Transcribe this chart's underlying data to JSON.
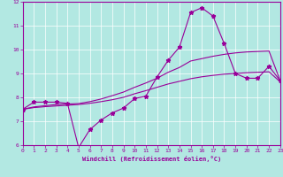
{
  "bg_color": "#b2e8e2",
  "line_color": "#990099",
  "grid_color": "#ffffff",
  "xlabel": "Windchill (Refroidissement éolien,°C)",
  "xlim": [
    0,
    23
  ],
  "ylim": [
    6,
    12
  ],
  "yticks": [
    6,
    7,
    8,
    9,
    10,
    11,
    12
  ],
  "xticks": [
    0,
    1,
    2,
    3,
    4,
    5,
    6,
    7,
    8,
    9,
    10,
    11,
    12,
    13,
    14,
    15,
    16,
    17,
    18,
    19,
    20,
    21,
    22,
    23
  ],
  "jagged_x": [
    0,
    1,
    2,
    3,
    4,
    5,
    6,
    7,
    8,
    9,
    10,
    11,
    12,
    13,
    14,
    15,
    16,
    17,
    18,
    19,
    20,
    21,
    22,
    23
  ],
  "jagged_y": [
    7.5,
    7.8,
    7.8,
    7.8,
    7.75,
    5.9,
    6.65,
    7.05,
    7.35,
    7.55,
    7.95,
    8.05,
    8.85,
    9.55,
    10.1,
    11.55,
    11.75,
    11.4,
    10.25,
    9.0,
    8.8,
    8.8,
    9.3,
    8.7
  ],
  "smooth1_x": [
    0,
    1,
    2,
    3,
    4,
    5,
    6,
    7,
    8,
    9,
    10,
    11,
    12,
    13,
    14,
    15,
    16,
    17,
    18,
    19,
    20,
    21,
    22,
    23
  ],
  "smooth1_y": [
    7.5,
    7.6,
    7.65,
    7.7,
    7.72,
    7.74,
    7.82,
    7.93,
    8.07,
    8.22,
    8.42,
    8.6,
    8.8,
    9.05,
    9.25,
    9.52,
    9.62,
    9.72,
    9.8,
    9.86,
    9.9,
    9.92,
    9.94,
    8.7
  ],
  "smooth2_x": [
    0,
    1,
    2,
    3,
    4,
    5,
    6,
    7,
    8,
    9,
    10,
    11,
    12,
    13,
    14,
    15,
    16,
    17,
    18,
    19,
    20,
    21,
    22,
    23
  ],
  "smooth2_y": [
    7.5,
    7.57,
    7.61,
    7.64,
    7.67,
    7.7,
    7.75,
    7.82,
    7.9,
    8.0,
    8.15,
    8.28,
    8.42,
    8.56,
    8.67,
    8.78,
    8.86,
    8.92,
    8.97,
    9.0,
    9.03,
    9.05,
    9.07,
    8.65
  ]
}
